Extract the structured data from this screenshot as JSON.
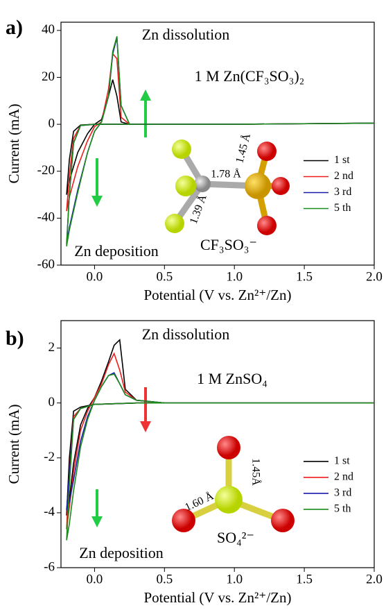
{
  "chart_data": [
    {
      "type": "line",
      "panel_label": "a)",
      "xlabel": "Potential (V vs. Zn²⁺/Zn)",
      "ylabel": "Current (mA)",
      "annotations": [
        "Zn dissolution",
        "1 M Zn(CF₃SO₃)₂",
        "Zn deposition",
        "CF₃SO₃⁻",
        "1.78 Å",
        "1.45 Å",
        "1.39 Å"
      ],
      "xlim": [
        -0.24,
        2.0
      ],
      "ylim": [
        -60,
        43.5
      ],
      "xticks": [
        {
          "value": 0,
          "label": "0.0"
        },
        0.5,
        {
          "value": 1,
          "label": "1.0"
        },
        1.5,
        {
          "value": 2,
          "label": "2.0"
        }
      ],
      "yticks": [
        -60,
        -40,
        -20,
        0,
        20,
        40
      ],
      "legend": "lower right",
      "series": [
        {
          "name": "1 st",
          "color": "#000000",
          "x": [
            2.0,
            1.0,
            0.2,
            0.0,
            -0.1,
            -0.15,
            -0.18,
            -0.2,
            -0.18,
            -0.12,
            -0.05,
            0.0,
            0.05,
            0.1,
            0.13,
            0.16,
            0.19,
            0.25,
            0.5,
            1.0,
            2.0
          ],
          "values": [
            0.5,
            0,
            0,
            0,
            -0.3,
            -3,
            -15,
            -30,
            -24,
            -12,
            -4,
            0,
            2,
            12,
            19,
            12,
            1,
            0,
            0,
            0,
            0.5
          ]
        },
        {
          "name": "2 nd",
          "color": "#ee1c1c",
          "x": [
            2.0,
            1.0,
            0.2,
            0.0,
            -0.1,
            -0.15,
            -0.18,
            -0.2,
            -0.18,
            -0.12,
            -0.05,
            0.0,
            0.05,
            0.1,
            0.13,
            0.16,
            0.19,
            0.25,
            0.5,
            1.0,
            2.0
          ],
          "values": [
            0.5,
            0,
            0,
            0,
            -0.5,
            -6,
            -22,
            -37,
            -31,
            -18,
            -7,
            -1,
            1,
            15,
            30,
            28,
            3,
            0,
            0,
            0,
            0.5
          ]
        },
        {
          "name": "3 rd",
          "color": "#1a1aaa",
          "x": [
            2.0,
            1.0,
            0.2,
            0.0,
            -0.1,
            -0.15,
            -0.18,
            -0.2,
            -0.18,
            -0.12,
            -0.05,
            0.0,
            0.05,
            0.1,
            0.13,
            0.16,
            0.19,
            0.25,
            0.5,
            1.0,
            2.0
          ],
          "values": [
            0.5,
            0,
            0,
            0,
            -0.5,
            -8,
            -30,
            -51,
            -44,
            -28,
            -12,
            -3,
            1,
            12,
            30,
            37,
            8,
            0,
            0,
            0,
            0.5
          ]
        },
        {
          "name": "5 th",
          "color": "#1a8a1a",
          "x": [
            2.0,
            1.0,
            0.2,
            0.0,
            -0.1,
            -0.15,
            -0.18,
            -0.2,
            -0.18,
            -0.12,
            -0.05,
            0.0,
            0.05,
            0.1,
            0.13,
            0.16,
            0.19,
            0.25,
            0.5,
            1.0,
            2.0
          ],
          "values": [
            0.5,
            0,
            0,
            0,
            -0.5,
            -8,
            -30,
            -52,
            -45,
            -29,
            -12,
            -3,
            1,
            12,
            31,
            37.5,
            8,
            0,
            0,
            0,
            0.5
          ]
        }
      ]
    },
    {
      "type": "line",
      "panel_label": "b)",
      "xlabel": "Potential (V vs. Zn²⁺/Zn)",
      "ylabel": "Current (mA)",
      "annotations": [
        "Zn dissolution",
        "1 M ZnSO₄",
        "Zn deposition",
        "SO₄²⁻",
        "1.60 Å",
        "1.45Å"
      ],
      "xlim": [
        -0.24,
        2.0
      ],
      "ylim": [
        -6,
        3
      ],
      "xticks": [
        {
          "value": 0,
          "label": "0.0"
        },
        0.5,
        {
          "value": 1,
          "label": "1.0"
        },
        1.5,
        {
          "value": 2,
          "label": "2.0"
        }
      ],
      "yticks": [
        -6,
        -4,
        -2,
        0,
        2
      ],
      "legend": "lower right",
      "series": [
        {
          "name": "1 st",
          "color": "#000000",
          "x": [
            2.0,
            1.0,
            0.3,
            0.0,
            -0.1,
            -0.15,
            -0.18,
            -0.2,
            -0.18,
            -0.15,
            -0.1,
            -0.05,
            0.0,
            0.05,
            0.1,
            0.14,
            0.18,
            0.22,
            0.3,
            0.5,
            1.0,
            2.0
          ],
          "values": [
            0,
            0,
            0,
            -0.05,
            -0.15,
            -0.3,
            -2,
            -4.1,
            -3.5,
            -2.2,
            -0.8,
            -0.2,
            0.2,
            0.8,
            1.5,
            2.1,
            2.3,
            0.5,
            0.1,
            0,
            0,
            0
          ]
        },
        {
          "name": "2 nd",
          "color": "#ee1c1c",
          "x": [
            2.0,
            1.0,
            0.3,
            0.0,
            -0.1,
            -0.15,
            -0.18,
            -0.2,
            -0.18,
            -0.15,
            -0.1,
            -0.05,
            0.0,
            0.05,
            0.1,
            0.14,
            0.18,
            0.22,
            0.3,
            0.5,
            1.0,
            2.0
          ],
          "values": [
            0,
            0,
            0,
            -0.05,
            -0.2,
            -0.5,
            -2.5,
            -4.6,
            -3.8,
            -2.5,
            -1,
            -0.3,
            0.2,
            0.7,
            1.4,
            1.8,
            1.2,
            0.4,
            0.1,
            0,
            0,
            0
          ]
        },
        {
          "name": "3 rd",
          "color": "#1a1aaa",
          "x": [
            2.0,
            1.0,
            0.3,
            0.0,
            -0.1,
            -0.15,
            -0.18,
            -0.2,
            -0.18,
            -0.15,
            -0.1,
            -0.05,
            0.0,
            0.05,
            0.1,
            0.14,
            0.18,
            0.22,
            0.3,
            0.5,
            1.0,
            2.0
          ],
          "values": [
            0,
            0,
            0,
            -0.05,
            -0.2,
            -0.6,
            -2.6,
            -3.9,
            -3.6,
            -2.8,
            -1.4,
            -0.5,
            0.1,
            0.6,
            1.0,
            1.1,
            0.7,
            0.3,
            0.1,
            0,
            0,
            0
          ]
        },
        {
          "name": "5 th",
          "color": "#1a8a1a",
          "x": [
            2.0,
            1.0,
            0.3,
            0.0,
            -0.1,
            -0.15,
            -0.18,
            -0.2,
            -0.18,
            -0.15,
            -0.1,
            -0.05,
            0.0,
            0.05,
            0.1,
            0.14,
            0.18,
            0.22,
            0.3,
            0.5,
            1.0,
            2.0
          ],
          "values": [
            0,
            0,
            0,
            -0.05,
            -0.2,
            -0.6,
            -3,
            -5.0,
            -4.4,
            -3.2,
            -1.6,
            -0.6,
            0.1,
            0.6,
            1.0,
            1.05,
            0.7,
            0.3,
            0.1,
            0,
            0,
            0
          ]
        }
      ]
    }
  ]
}
